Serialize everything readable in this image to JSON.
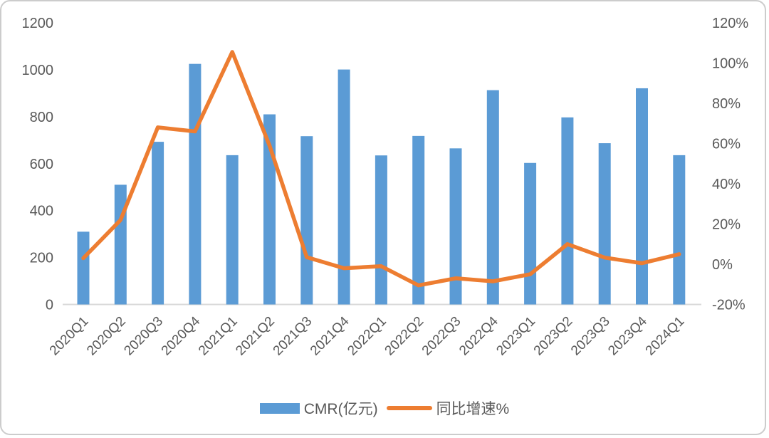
{
  "chart_data": {
    "type": "bar+line-combo",
    "title": "",
    "categories": [
      "2020Q1",
      "2020Q2",
      "2020Q3",
      "2020Q4",
      "2021Q1",
      "2021Q2",
      "2021Q3",
      "2021Q4",
      "2022Q1",
      "2022Q2",
      "2022Q3",
      "2022Q4",
      "2023Q1",
      "2023Q2",
      "2023Q3",
      "2023Q4",
      "2024Q1"
    ],
    "series": [
      {
        "name": "CMR(亿元)",
        "type": "bar",
        "axis": "left",
        "color": "#5B9BD5",
        "values": [
          310,
          510,
          693,
          1025,
          636,
          810,
          717,
          1001,
          635,
          718,
          665,
          913,
          603,
          797,
          687,
          921,
          636
        ]
      },
      {
        "name": "同比增速%",
        "type": "line",
        "axis": "right",
        "color": "#ED7D31",
        "values": [
          3,
          22,
          68,
          66,
          105.5,
          59,
          3.5,
          -2,
          -1,
          -10.5,
          -7,
          -8.5,
          -5,
          10,
          3.3,
          0.5,
          5
        ]
      }
    ],
    "left_axis": {
      "min": 0,
      "max": 1200,
      "step": 200,
      "ticks": [
        "0",
        "200",
        "400",
        "600",
        "800",
        "1000",
        "1200"
      ]
    },
    "right_axis": {
      "min": -20,
      "max": 120,
      "step": 20,
      "ticks": [
        "-20%",
        "0%",
        "20%",
        "40%",
        "60%",
        "80%",
        "100%",
        "120%"
      ]
    },
    "grid": false,
    "legend_position": "bottom",
    "legend": [
      {
        "label": "CMR(亿元)",
        "marker": "rect",
        "color": "#5B9BD5"
      },
      {
        "label": "同比增速%",
        "marker": "line",
        "color": "#ED7D31"
      }
    ]
  },
  "colors": {
    "bar": "#5B9BD5",
    "line": "#ED7D31",
    "axis_text": "#595959",
    "baseline": "#D9D9D9",
    "frame_border": "#cccccc",
    "background": "#ffffff"
  }
}
